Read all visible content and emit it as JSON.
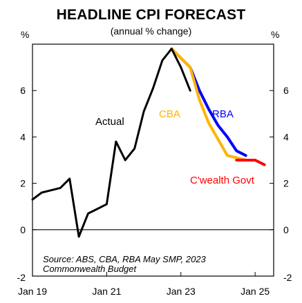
{
  "chart_data": {
    "type": "line",
    "title": "HEADLINE CPI FORECAST",
    "subtitle": "(annual % change)",
    "ylabel_left": "%",
    "ylabel_right": "%",
    "ylim": [
      -2,
      8
    ],
    "yticks": [
      -2,
      0,
      2,
      4,
      6
    ],
    "x_range": [
      2019.0,
      2025.5
    ],
    "xticks": [
      {
        "label": "Jan 19",
        "x": 2019.0
      },
      {
        "label": "Jan 21",
        "x": 2021.0
      },
      {
        "label": "Jan 23",
        "x": 2023.0
      },
      {
        "label": "Jan 25",
        "x": 2025.0
      }
    ],
    "grid": false,
    "series": [
      {
        "name": "Actual",
        "color": "#000000",
        "x": [
          2019.0,
          2019.25,
          2019.5,
          2019.75,
          2020.0,
          2020.25,
          2020.5,
          2020.75,
          2021.0,
          2021.25,
          2021.5,
          2021.75,
          2022.0,
          2022.25,
          2022.5,
          2022.75,
          2023.0,
          2023.25
        ],
        "values": [
          1.3,
          1.6,
          1.7,
          1.8,
          2.2,
          -0.3,
          0.7,
          0.9,
          1.1,
          3.8,
          3.0,
          3.5,
          5.1,
          6.1,
          7.3,
          7.8,
          7.0,
          6.0
        ]
      },
      {
        "name": "RBA",
        "color": "#0000ff",
        "x": [
          2022.75,
          2023.25,
          2023.5,
          2023.75,
          2024.0,
          2024.25,
          2024.5,
          2024.75
        ],
        "values": [
          7.8,
          7.0,
          6.0,
          5.2,
          4.5,
          4.0,
          3.4,
          3.2
        ]
      },
      {
        "name": "CBA",
        "color": "#ffb400",
        "x": [
          2022.75,
          2023.25,
          2023.5,
          2023.75,
          2024.0,
          2024.25,
          2024.5,
          2024.75
        ],
        "values": [
          7.8,
          7.0,
          5.6,
          4.6,
          3.9,
          3.2,
          3.1,
          3.0
        ]
      },
      {
        "name": "C'wealth Govt",
        "color": "#ff0000",
        "x": [
          2024.5,
          2024.75,
          2025.0,
          2025.25
        ],
        "values": [
          3.0,
          3.0,
          3.0,
          2.8
        ]
      }
    ],
    "annotations": [
      {
        "text": "Actual",
        "color": "#000000"
      },
      {
        "text": "CBA",
        "color": "#ffb400"
      },
      {
        "text": "RBA",
        "color": "#0000ff"
      },
      {
        "text": "C'wealth Govt",
        "color": "#ff0000"
      }
    ],
    "source": [
      "Source: ABS, CBA, RBA May SMP, 2023",
      "Commonwealth Budget"
    ]
  }
}
